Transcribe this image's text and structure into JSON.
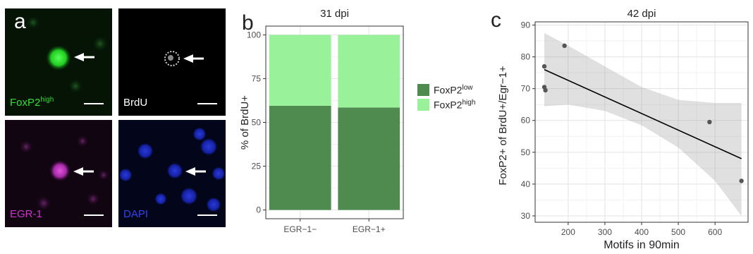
{
  "panel_a": {
    "letter": "a",
    "tiles": [
      {
        "label_main": "FoxP2",
        "label_sup": "high",
        "color": "#33dd33"
      },
      {
        "label_main": "BrdU",
        "label_sup": "",
        "color": "#ffffff"
      },
      {
        "label_main": "EGR-1",
        "label_sup": "",
        "color": "#cc33cc"
      },
      {
        "label_main": "DAPI",
        "label_sup": "",
        "color": "#3344ee"
      }
    ]
  },
  "chart_data": [
    {
      "panel": "b",
      "type": "bar",
      "stacked": true,
      "title": "31 dpi",
      "xlabel": "",
      "ylabel": "% of BrdU+",
      "categories": [
        "EGR−1−",
        "EGR−1+"
      ],
      "series": [
        {
          "name": "FoxP2",
          "name_sup": "low",
          "color": "#4f8a4f",
          "values": [
            59.5,
            58.5
          ]
        },
        {
          "name": "FoxP2",
          "name_sup": "high",
          "color": "#99f299",
          "values": [
            40.5,
            41.5
          ]
        }
      ],
      "ylim": [
        0,
        100
      ],
      "yticks": [
        0,
        25,
        50,
        75,
        100
      ],
      "grid": true,
      "legend_position": "right"
    },
    {
      "panel": "c",
      "type": "scatter",
      "title": "42 dpi",
      "xlabel": "Motifs in 90min",
      "ylabel": "FoxP2+ of BrdU+/Egr−1+",
      "points": [
        {
          "x": 135,
          "y": 77
        },
        {
          "x": 190,
          "y": 83.5
        },
        {
          "x": 135,
          "y": 70.5
        },
        {
          "x": 138,
          "y": 69.5
        },
        {
          "x": 585,
          "y": 59.5
        },
        {
          "x": 672,
          "y": 41
        }
      ],
      "fit_line": {
        "x": [
          135,
          672
        ],
        "y": [
          76,
          48
        ]
      },
      "confidence_band": {
        "x": [
          135,
          200,
          300,
          400,
          500,
          600,
          672
        ],
        "lower": [
          64.5,
          65,
          63,
          58.5,
          51.5,
          41,
          30
        ],
        "upper": [
          87.5,
          83.5,
          77,
          70.5,
          66.5,
          65.5,
          65.5
        ]
      },
      "xlim": [
        110,
        690
      ],
      "ylim": [
        28,
        91
      ],
      "xticks": [
        200,
        300,
        400,
        500,
        600
      ],
      "yticks": [
        30,
        40,
        50,
        60,
        70,
        80,
        90
      ],
      "grid": true
    }
  ]
}
